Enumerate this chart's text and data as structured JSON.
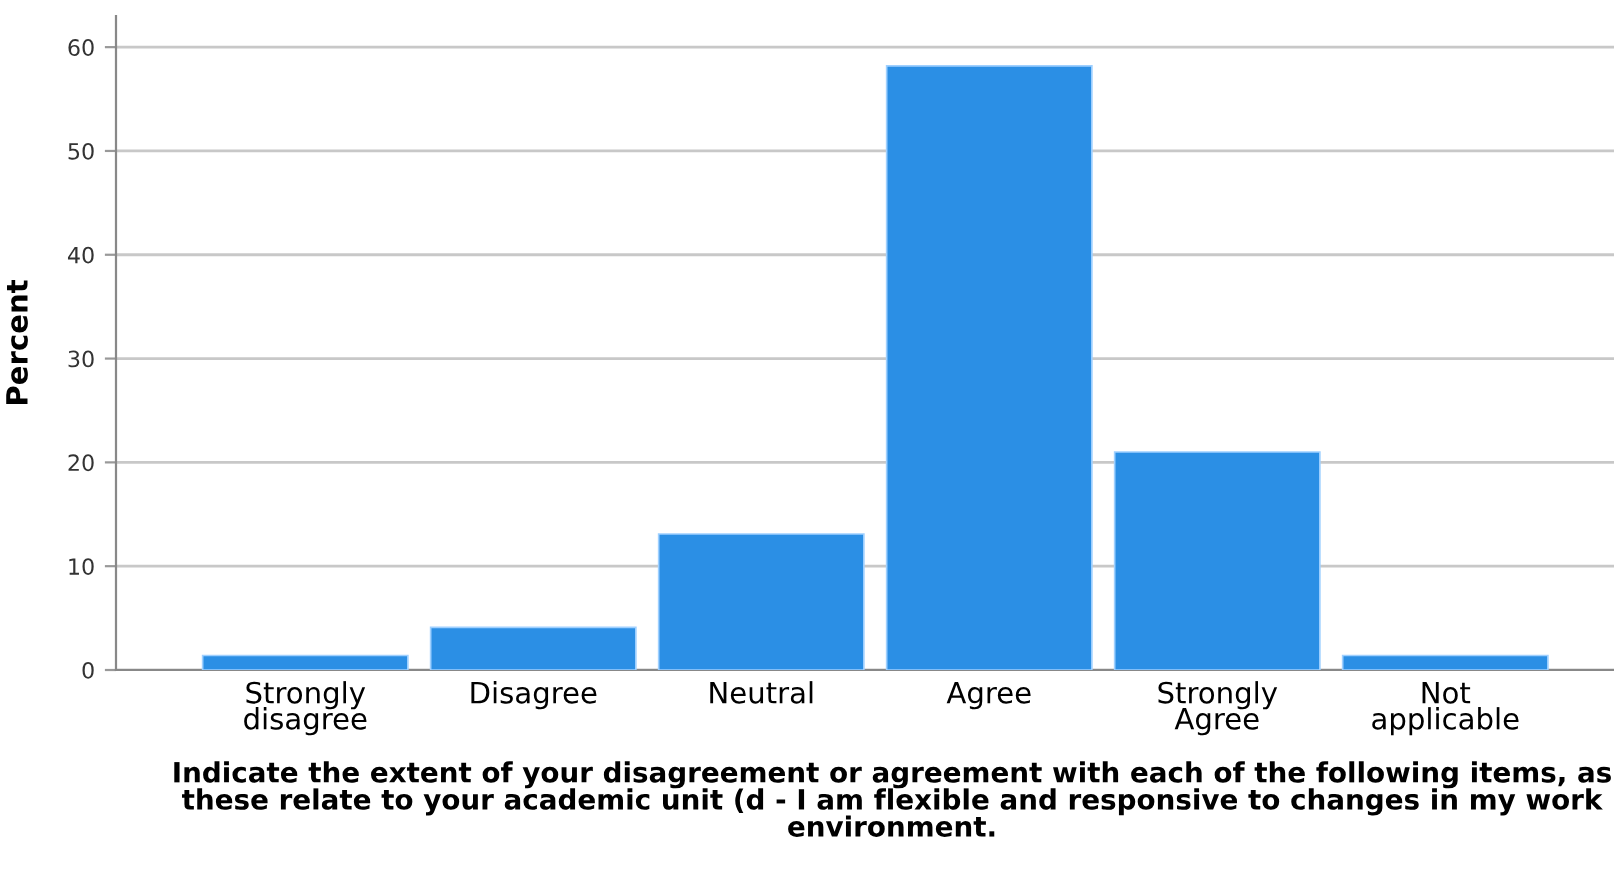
{
  "chart_data": {
    "type": "bar",
    "categories": [
      "Strongly\ndisagree",
      "Disagree",
      "Neutral",
      "Agree",
      "Strongly\nAgree",
      "Not\napplicable"
    ],
    "values": [
      1.4,
      4.1,
      13.1,
      58.2,
      21.0,
      1.4
    ],
    "color": "#2b8fe5",
    "ylabel": "Percent",
    "xlabel": "Indicate the extent of your disagreement or agreement with each of the following items, as these relate to your academic unit (d - I am flexible and responsive to changes in my work environment.",
    "ylim": [
      0,
      63
    ],
    "yticks": [
      0,
      10,
      20,
      30,
      40,
      50,
      60
    ],
    "grid": "y"
  }
}
